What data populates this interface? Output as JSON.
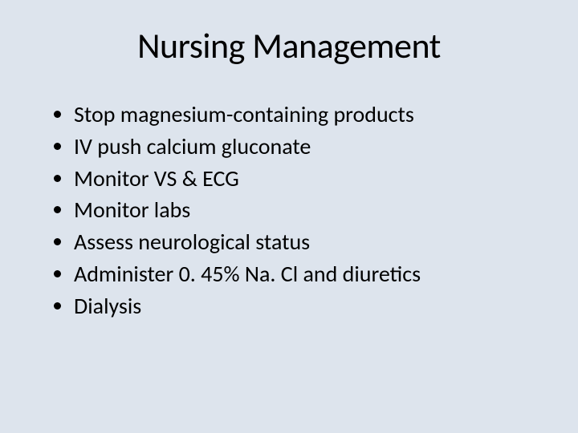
{
  "slide": {
    "background_color": "#dde4ed",
    "text_color": "#000000",
    "title": "Nursing Management",
    "title_fontsize": 44,
    "body_fontsize": 28,
    "bullets": [
      "Stop magnesium-containing products",
      "IV push calcium gluconate",
      "Monitor VS & ECG",
      "Monitor labs",
      "Assess neurological status",
      "Administer 0. 45% Na. Cl and diuretics",
      "Dialysis"
    ]
  }
}
